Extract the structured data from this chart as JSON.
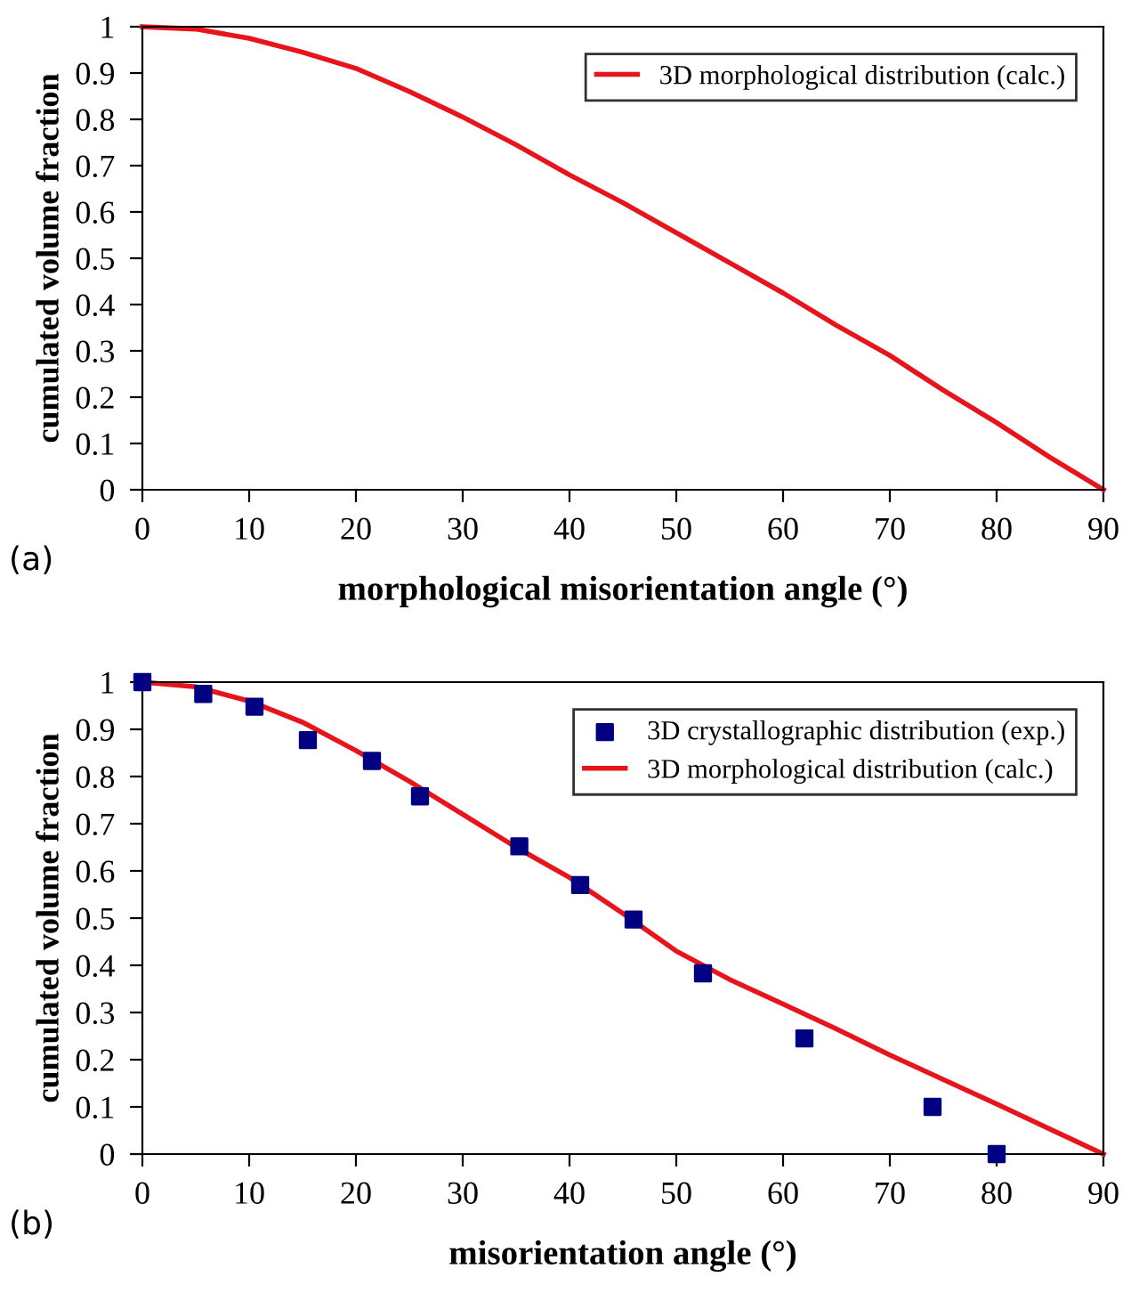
{
  "chart_data": [
    {
      "type": "line",
      "xlabel": "morphological misorientation angle (°)",
      "ylabel": "cumulated volume fraction",
      "annotations": [
        "(a)"
      ],
      "xlim": [
        0,
        90
      ],
      "ylim": [
        0,
        1
      ],
      "xticks": [
        0,
        10,
        20,
        30,
        40,
        50,
        60,
        70,
        80,
        90
      ],
      "yticks": [
        0,
        0.1,
        0.2,
        0.3,
        0.4,
        0.5,
        0.6,
        0.7,
        0.8,
        0.9,
        1
      ],
      "grid": false,
      "legend": "top right",
      "series": [
        {
          "name": "3D morphological distribution (calc.)",
          "color": "#e8141c",
          "marker": "none",
          "x": [
            0,
            5,
            10,
            15,
            20,
            25,
            30,
            35,
            40,
            45,
            50,
            55,
            60,
            65,
            70,
            75,
            80,
            85,
            90
          ],
          "values": [
            1,
            0.995,
            0.975,
            0.945,
            0.91,
            0.86,
            0.805,
            0.745,
            0.68,
            0.62,
            0.555,
            0.49,
            0.425,
            0.355,
            0.29,
            0.215,
            0.145,
            0.07,
            0
          ]
        }
      ]
    },
    {
      "type": "line",
      "xlabel": "misorientation angle (°)",
      "ylabel": "cumulated volume fraction",
      "annotations": [
        "(b)"
      ],
      "xlim": [
        0,
        90
      ],
      "ylim": [
        0,
        1
      ],
      "xticks": [
        0,
        10,
        20,
        30,
        40,
        50,
        60,
        70,
        80,
        90
      ],
      "yticks": [
        0,
        0.1,
        0.2,
        0.3,
        0.4,
        0.5,
        0.6,
        0.7,
        0.8,
        0.9,
        1
      ],
      "grid": false,
      "legend": "top right",
      "series": [
        {
          "name": "3D crystallographic distribution (exp.)",
          "color": "#000080",
          "type": "scatter",
          "marker": "square",
          "x": [
            0,
            5.7,
            10.5,
            15.5,
            21.5,
            26,
            35.3,
            41,
            46,
            52.5,
            62,
            74,
            80
          ],
          "values": [
            1,
            0.975,
            0.948,
            0.877,
            0.833,
            0.758,
            0.652,
            0.57,
            0.497,
            0.383,
            0.245,
            0.1,
            0
          ]
        },
        {
          "name": "3D morphological distribution (calc.)",
          "color": "#e8141c",
          "marker": "none",
          "x": [
            0,
            5,
            10,
            15,
            20,
            25,
            30,
            35,
            40,
            45,
            50,
            55,
            60,
            65,
            70,
            75,
            80,
            85,
            90
          ],
          "values": [
            1,
            0.99,
            0.96,
            0.915,
            0.855,
            0.79,
            0.72,
            0.65,
            0.586,
            0.51,
            0.43,
            0.37,
            0.318,
            0.265,
            0.21,
            0.158,
            0.106,
            0.053,
            0
          ]
        }
      ]
    }
  ]
}
